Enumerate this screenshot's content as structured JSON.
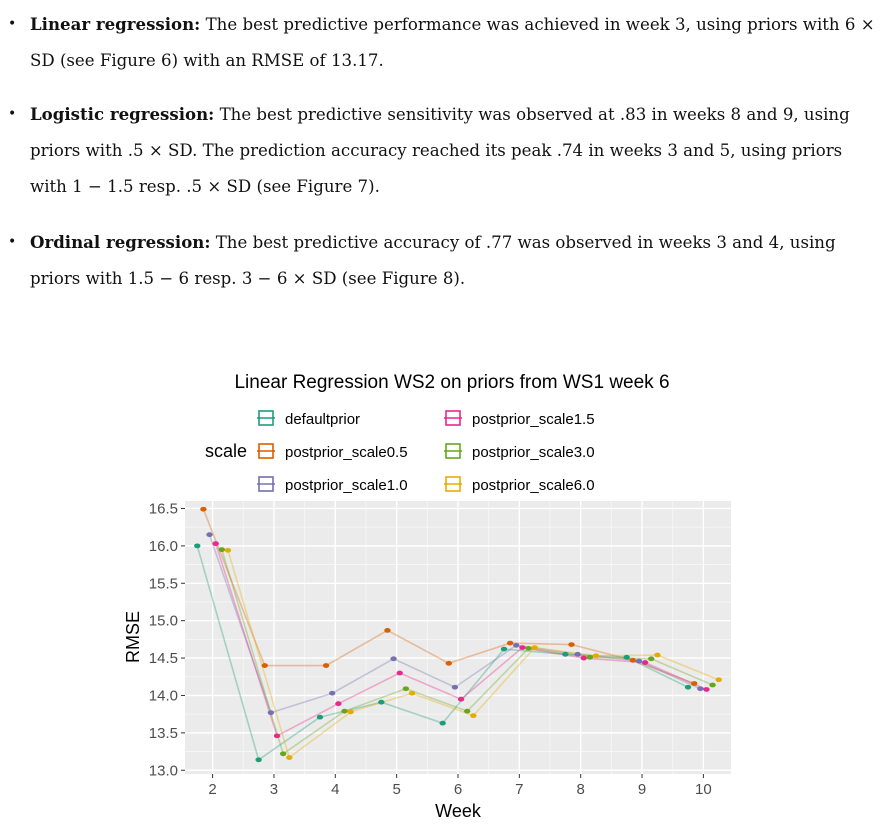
{
  "bullets": [
    {
      "bold": "Linear regression:",
      "text": "The best predictive performance was achieved in week 3, using priors with 6 × SD (see Figure 6) with an RMSE of 13.17."
    },
    {
      "bold": "Logistic regression:",
      "text": "The best predictive sensitivity was observed at .83 in weeks 8 and 9, using priors with .5 × SD. The prediction accuracy reached its peak .74 in weeks 3 and 5, using priors with 1 − 1.5 resp. .5 × SD (see Figure 7)."
    },
    {
      "bold": "Ordinal regression:",
      "text": "The best predictive accuracy of .77 was observed in weeks 3 and 4, using priors with 1.5 − 6 resp. 3 − 6 × SD (see Figure 8)."
    }
  ],
  "chart_data": {
    "type": "line",
    "title": "Linear Regression WS2 on priors from WS1 week 6",
    "xlabel": "Week",
    "ylabel": "RMSE",
    "legend_title": "scale",
    "legend_position": "top",
    "background": "#EBEBEB",
    "grid": true,
    "xlim": [
      1.55,
      10.45
    ],
    "ylim": [
      12.95,
      16.6
    ],
    "x_ticks": [
      2,
      3,
      4,
      5,
      6,
      7,
      8,
      9,
      10
    ],
    "y_ticks": [
      13.0,
      13.5,
      14.0,
      14.5,
      15.0,
      15.5,
      16.0,
      16.5
    ],
    "y_tick_labels": [
      "13.0",
      "13.5",
      "14.0",
      "14.5",
      "15.0",
      "15.5",
      "16.0",
      "16.5"
    ],
    "x_tick_labels": [
      "2",
      "3",
      "4",
      "5",
      "6",
      "7",
      "8",
      "9",
      "10"
    ],
    "series": [
      {
        "name": "defaultprior",
        "color": "#1B9E77",
        "x": [
          2,
          3,
          4,
          5,
          6,
          7,
          8,
          9,
          10
        ],
        "offset": -0.25,
        "values": [
          16.0,
          13.14,
          13.71,
          13.91,
          13.63,
          14.62,
          14.55,
          14.51,
          14.11
        ]
      },
      {
        "name": "postprior_scale0.5",
        "color": "#D95F02",
        "x": [
          2,
          3,
          4,
          5,
          6,
          7,
          8,
          9,
          10
        ],
        "offset": -0.15,
        "values": [
          16.49,
          14.4,
          14.4,
          14.87,
          14.43,
          14.7,
          14.68,
          14.47,
          14.16
        ]
      },
      {
        "name": "postprior_scale1.0",
        "color": "#7570B3",
        "x": [
          2,
          3,
          4,
          5,
          6,
          7,
          8,
          9,
          10
        ],
        "offset": -0.05,
        "values": [
          16.15,
          13.77,
          14.03,
          14.49,
          14.11,
          14.67,
          14.55,
          14.46,
          14.09
        ]
      },
      {
        "name": "postprior_scale1.5",
        "color": "#E7298A",
        "x": [
          2,
          3,
          4,
          5,
          6,
          7,
          8,
          9,
          10
        ],
        "offset": 0.05,
        "values": [
          16.03,
          13.46,
          13.89,
          14.3,
          13.95,
          14.64,
          14.5,
          14.44,
          14.08
        ]
      },
      {
        "name": "postprior_scale3.0",
        "color": "#66A61E",
        "x": [
          2,
          3,
          4,
          5,
          6,
          7,
          8,
          9,
          10
        ],
        "offset": 0.15,
        "values": [
          15.95,
          13.22,
          13.79,
          14.09,
          13.79,
          14.63,
          14.51,
          14.49,
          14.14
        ]
      },
      {
        "name": "postprior_scale6.0",
        "color": "#E6AB02",
        "x": [
          2,
          3,
          4,
          5,
          6,
          7,
          8,
          9,
          10
        ],
        "offset": 0.25,
        "values": [
          15.94,
          13.17,
          13.78,
          14.03,
          13.73,
          14.64,
          14.53,
          14.54,
          14.21
        ]
      }
    ]
  }
}
